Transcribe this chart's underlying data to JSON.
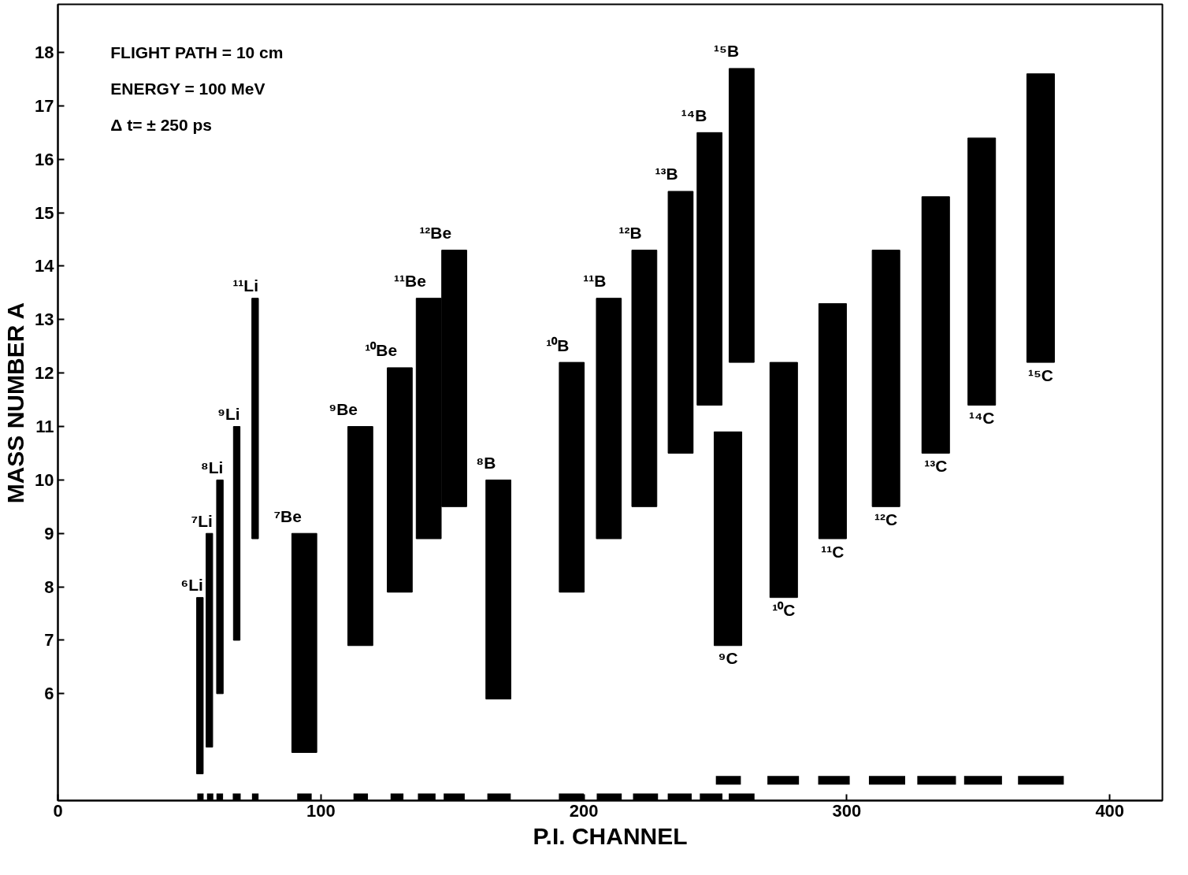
{
  "chart_data": {
    "type": "bar",
    "xlabel": "P.I. CHANNEL",
    "ylabel": "MASS NUMBER A",
    "xlim": [
      0,
      420
    ],
    "xticks": [
      0,
      100,
      200,
      300,
      400
    ],
    "ylim": [
      4,
      18.9
    ],
    "yticks": [
      6,
      7,
      8,
      9,
      10,
      11,
      12,
      13,
      14,
      15,
      16,
      17,
      18
    ],
    "grid": false,
    "series": [
      {
        "color": "#000000",
        "x": [
          54,
          57.6,
          61.6,
          68,
          75
        ],
        "base": [
          4.5,
          5.0,
          6.0,
          7.0,
          8.9
        ],
        "values": [
          3.3,
          4.0,
          4.0,
          4.0,
          4.5
        ],
        "value_labels": [
          "⁶Li",
          "⁷Li",
          "⁸Li",
          "⁹Li",
          "¹¹Li"
        ]
      },
      {
        "color": "#000000",
        "x": [
          93.7,
          115,
          130,
          141,
          150.7
        ],
        "base": [
          4.9,
          6.9,
          7.9,
          8.9,
          9.5
        ],
        "values": [
          4.1,
          4.1,
          4.2,
          4.5,
          4.8
        ],
        "value_labels": [
          "⁷Be",
          "⁹Be",
          "¹⁰Be",
          "¹¹Be",
          "¹²Be"
        ]
      },
      {
        "color": "#000000",
        "x": [
          167.5,
          195.4,
          209.5,
          223,
          236.8,
          247.8,
          260
        ],
        "base": [
          5.9,
          7.9,
          8.9,
          9.5,
          10.5,
          11.4,
          12.2
        ],
        "values": [
          4.1,
          4.3,
          4.5,
          4.8,
          4.9,
          5.1,
          5.5
        ],
        "value_labels": [
          "⁸B",
          "¹⁰B",
          "¹¹B",
          "¹²B",
          "¹³B",
          "¹⁴B",
          "¹⁵B"
        ]
      },
      {
        "color": "#000000",
        "x": [
          254.8,
          276,
          294.6,
          314.9,
          333.8,
          351.3,
          373.7
        ],
        "base": [
          6.9,
          7.8,
          8.9,
          9.5,
          10.5,
          11.4,
          12.2
        ],
        "values": [
          4.0,
          4.4,
          4.4,
          4.8,
          4.8,
          5.0,
          5.4
        ],
        "value_labels": [
          "⁹C",
          "¹⁰C",
          "¹¹C",
          "¹²C",
          "¹³C",
          "¹⁴C",
          "¹⁵C"
        ]
      },
      {
        "type": "line",
        "color": "#000000",
        "x": [
          53.0,
          55.4,
          null,
          56.7,
          59.1,
          null,
          60.3,
          62.8,
          null,
          66.5,
          69.5,
          null,
          73.8,
          76.3,
          null,
          91.0,
          96.5,
          null,
          112.4,
          117.9,
          null,
          126.5,
          131.4,
          null,
          136.9,
          143.6,
          null,
          146.7,
          154.7,
          null,
          163.3,
          172.2,
          null,
          190.5,
          200.0,
          null,
          204.9,
          214.4,
          null,
          218.7,
          228.2,
          null,
          231.9,
          241.0,
          null,
          244.1,
          252.7,
          null,
          255.1,
          264.9
        ],
        "values": [
          4.05,
          4.05,
          null,
          4.05,
          4.05,
          null,
          4.05,
          4.05,
          null,
          4.05,
          4.05,
          null,
          4.05,
          4.05,
          null,
          4.05,
          4.05,
          null,
          4.05,
          4.05,
          null,
          4.05,
          4.05,
          null,
          4.05,
          4.05,
          null,
          4.05,
          4.05,
          null,
          4.05,
          4.05,
          null,
          4.05,
          4.05,
          null,
          4.05,
          4.05,
          null,
          4.05,
          4.05,
          null,
          4.05,
          4.05,
          null,
          4.05,
          4.05,
          null,
          4.05,
          4.05
        ]
      },
      {
        "type": "line",
        "color": "#000000",
        "x": [
          250.2,
          259.7,
          null,
          269.8,
          281.8,
          null,
          289.1,
          301.1,
          null,
          308.4,
          322.2,
          null,
          326.8,
          341.5,
          null,
          344.6,
          359.0,
          null,
          365.1,
          382.5
        ],
        "values": [
          4.38,
          4.38,
          null,
          4.38,
          4.38,
          null,
          4.38,
          4.38,
          null,
          4.38,
          4.38,
          null,
          4.38,
          4.38,
          null,
          4.38,
          4.38,
          null,
          4.38,
          4.38
        ]
      }
    ],
    "annotations": [
      "FLIGHT PATH = 10 cm",
      "ENERGY = 100 MeV",
      "Δ t= ± 250 ps"
    ]
  }
}
